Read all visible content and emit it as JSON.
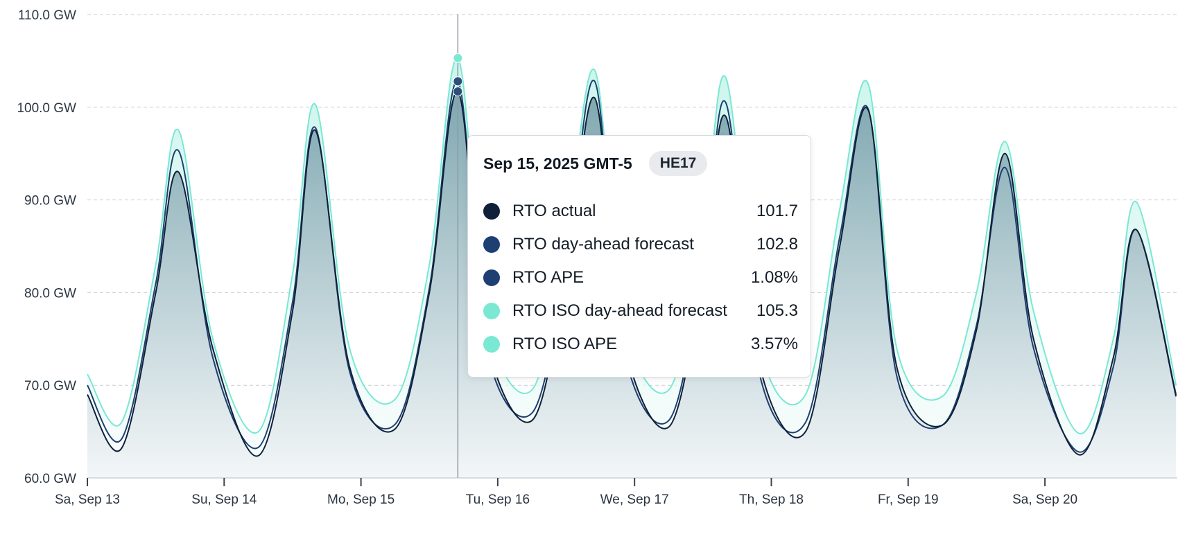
{
  "chart_data": {
    "type": "area",
    "y_ticks": [
      "60.0 GW",
      "70.0 GW",
      "80.0 GW",
      "90.0 GW",
      "100.0 GW",
      "110.0 GW"
    ],
    "ylim": [
      60,
      110
    ],
    "y_unit": "GW",
    "x_ticks": [
      "Sa, Sep 13",
      "Su, Sep 14",
      "Mo, Sep 15",
      "Tu, Sep 16",
      "We, Sep 17",
      "Th, Sep 18",
      "Fr, Sep 19",
      "Sa, Sep 20"
    ],
    "grid": true,
    "x": [
      "Sep 13 00:00",
      "Sep 13 06:00",
      "Sep 13 12:00",
      "Sep 13 16:00",
      "Sep 13 22:00",
      "Sep 14 06:00",
      "Sep 14 12:00",
      "Sep 14 16:00",
      "Sep 14 22:00",
      "Sep 15 06:00",
      "Sep 15 12:00",
      "Sep 15 17:00",
      "Sep 15 22:00",
      "Sep 16 06:00",
      "Sep 16 12:00",
      "Sep 16 17:00",
      "Sep 16 22:00",
      "Sep 17 06:00",
      "Sep 17 12:00",
      "Sep 17 16:00",
      "Sep 17 22:00",
      "Sep 18 06:00",
      "Sep 18 12:00",
      "Sep 18 17:00",
      "Sep 18 22:00",
      "Sep 19 06:00",
      "Sep 19 12:00",
      "Sep 19 17:00",
      "Sep 19 22:00",
      "Sep 20 06:00",
      "Sep 20 12:00",
      "Sep 20 16:00",
      "Sep 20 23:00"
    ],
    "series": [
      {
        "name": "RTO actual",
        "color": "#0f2138",
        "values": [
          69.0,
          63.2,
          80.0,
          93.0,
          74.0,
          62.4,
          78.0,
          97.5,
          72.0,
          65.3,
          80.0,
          101.7,
          75.0,
          66.2,
          82.0,
          101.0,
          75.0,
          65.5,
          82.0,
          99.0,
          72.0,
          65.0,
          85.0,
          99.7,
          72.0,
          65.7,
          76.0,
          95.0,
          75.0,
          62.5,
          73.0,
          86.8,
          68.8
        ]
      },
      {
        "name": "RTO day-ahead forecast",
        "color": "#1e3f72",
        "values": [
          70.0,
          64.2,
          81.0,
          95.3,
          73.0,
          63.3,
          79.0,
          97.8,
          71.5,
          65.8,
          80.5,
          102.8,
          74.0,
          67.0,
          83.0,
          102.8,
          74.0,
          66.2,
          83.0,
          100.5,
          71.0,
          66.0,
          86.0,
          99.8,
          71.0,
          65.7,
          76.5,
          93.5,
          74.0,
          62.8,
          72.0,
          86.8,
          69.0
        ]
      },
      {
        "name": "RTO ISO day-ahead forecast",
        "color": "#7ae8d3",
        "values": [
          71.2,
          66.0,
          83.0,
          97.5,
          75.0,
          65.0,
          82.0,
          100.3,
          74.0,
          68.5,
          83.0,
          105.3,
          77.0,
          69.5,
          86.0,
          104.0,
          77.0,
          69.5,
          86.0,
          103.2,
          74.0,
          69.0,
          89.0,
          102.5,
          74.0,
          68.8,
          80.0,
          96.3,
          78.0,
          64.8,
          75.0,
          89.8,
          70.0
        ]
      }
    ],
    "hover": {
      "index": 11,
      "x": "Sep 15, 2025 GMT-5",
      "label": "HE17"
    }
  },
  "tooltip": {
    "date": "Sep 15, 2025 GMT-5",
    "badge": "HE17",
    "rows": [
      {
        "label": "RTO actual",
        "value": "101.7",
        "color": "#0f2138"
      },
      {
        "label": "RTO day-ahead forecast",
        "value": "102.8",
        "color": "#1e3f72"
      },
      {
        "label": "RTO APE",
        "value": "1.08%",
        "color": "#1e3f72"
      },
      {
        "label": "RTO ISO day-ahead forecast",
        "value": "105.3",
        "color": "#7ae8d3"
      },
      {
        "label": "RTO ISO APE",
        "value": "3.57%",
        "color": "#7ae8d3"
      }
    ]
  }
}
